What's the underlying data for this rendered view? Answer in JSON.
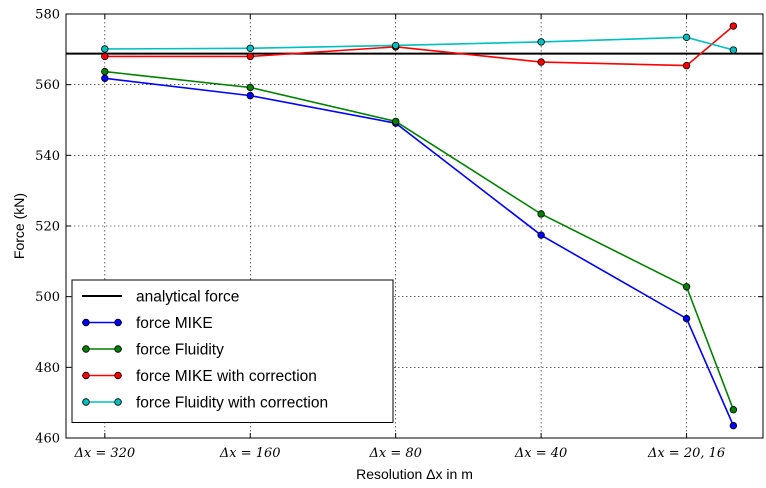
{
  "chart_data": {
    "type": "line",
    "title": "",
    "xlabel": "Resolution Δx in m",
    "ylabel": "Force (kN)",
    "ylim": [
      460,
      580
    ],
    "yticks": [
      460,
      480,
      500,
      520,
      540,
      560,
      580
    ],
    "x_ticks": [
      {
        "x": 320,
        "label": "Δx = 320"
      },
      {
        "x": 160,
        "label": "Δx = 160"
      },
      {
        "x": 80,
        "label": "Δx = 80"
      },
      {
        "x": 40,
        "label": "Δx = 40"
      },
      {
        "x": 20,
        "label": "Δx = 20, 16"
      }
    ],
    "grid": true,
    "legend_position": "lower-left",
    "analytical": {
      "name": "analytical force",
      "value": 568.8,
      "color": "#000000"
    },
    "series": [
      {
        "name": "force MIKE",
        "color": "#0000ff",
        "x": [
          320,
          160,
          80,
          40,
          20,
          16
        ],
        "y": [
          561.8,
          556.9,
          549.1,
          517.4,
          493.8,
          463.5
        ]
      },
      {
        "name": "force Fluidity",
        "color": "#008000",
        "x": [
          320,
          160,
          80,
          40,
          20,
          16
        ],
        "y": [
          563.7,
          559.2,
          549.6,
          523.4,
          502.8,
          468.0
        ]
      },
      {
        "name": "force MIKE with correction",
        "color": "#ff0000",
        "x": [
          320,
          160,
          80,
          40,
          20,
          16
        ],
        "y": [
          568.0,
          568.0,
          570.7,
          566.4,
          565.4,
          576.6
        ]
      },
      {
        "name": "force Fluidity with correction",
        "color": "#00bfbf",
        "x": [
          320,
          160,
          80,
          40,
          20,
          16
        ],
        "y": [
          570.1,
          570.3,
          571.1,
          572.1,
          573.4,
          569.8
        ]
      }
    ]
  }
}
